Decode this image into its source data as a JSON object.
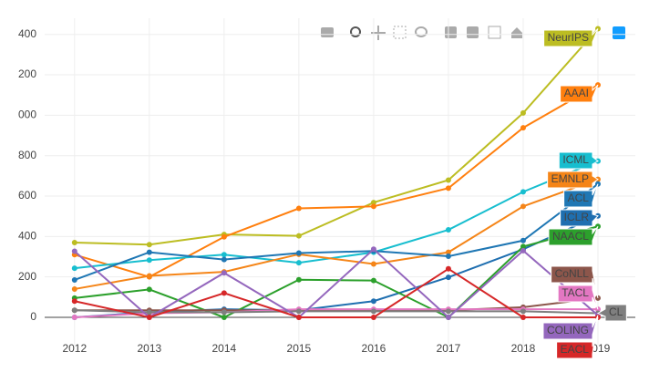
{
  "chart_data": {
    "type": "line",
    "x": [
      2012,
      2013,
      2014,
      2015,
      2016,
      2017,
      2018,
      2019
    ],
    "xlim": [
      2011.6,
      2019.5
    ],
    "xticks": [
      2012,
      2013,
      2014,
      2015,
      2016,
      2017,
      2018,
      2019
    ],
    "ylim": [
      -140,
      1480
    ],
    "yticks": [
      0,
      200,
      {
        "value": 400,
        "label": "400"
      },
      {
        "value": 600,
        "label": "600"
      },
      {
        "value": 800,
        "label": "800"
      },
      {
        "value": 1000,
        "label": "000"
      },
      {
        "value": 1200,
        "label": "200"
      },
      {
        "value": 1400,
        "label": "400"
      }
    ],
    "grid": true,
    "series": [
      {
        "name": "NeurIPS",
        "color": "#bcbd22",
        "values": [
          370,
          360,
          410,
          403,
          568,
          679,
          1011,
          1428
        ]
      },
      {
        "name": "AAAI",
        "color": "#ff7f0e",
        "values": [
          310,
          200,
          398,
          539,
          549,
          639,
          938,
          1150
        ]
      },
      {
        "name": "ICML",
        "color": "#17becf",
        "values": [
          243,
          283,
          310,
          270,
          322,
          433,
          621,
          773
        ]
      },
      {
        "name": "EMNLP",
        "color": "#f58518",
        "values": [
          140,
          205,
          225,
          312,
          264,
          322,
          549,
          683
        ]
      },
      {
        "name": "ACL",
        "color": "#1f77b4",
        "values": [
          185,
          322,
          286,
          318,
          328,
          302,
          380,
          660
        ]
      },
      {
        "name": "ICLR",
        "color": "#1f6fb0",
        "values": [
          0,
          25,
          40,
          35,
          80,
          198,
          337,
          502
        ]
      },
      {
        "name": "NAACL",
        "color": "#2ca02c",
        "values": [
          95,
          138,
          0,
          186,
          182,
          0,
          350,
          450
        ]
      },
      {
        "name": "CoNLL",
        "color": "#8c564b",
        "values": [
          35,
          35,
          35,
          35,
          35,
          35,
          50,
          95
        ]
      },
      {
        "name": "TACL",
        "color": "#e377c2",
        "values": [
          0,
          20,
          25,
          40,
          40,
          40,
          40,
          40
        ]
      },
      {
        "name": "CL",
        "color": "#7f7f7f",
        "values": [
          35,
          25,
          25,
          30,
          30,
          30,
          30,
          20
        ]
      },
      {
        "name": "COLING",
        "color": "#9467bd",
        "values": [
          327,
          0,
          220,
          0,
          337,
          0,
          330,
          10
        ]
      },
      {
        "name": "EACL",
        "color": "#d62728",
        "values": [
          80,
          0,
          120,
          0,
          0,
          240,
          0,
          0
        ]
      }
    ]
  }
}
